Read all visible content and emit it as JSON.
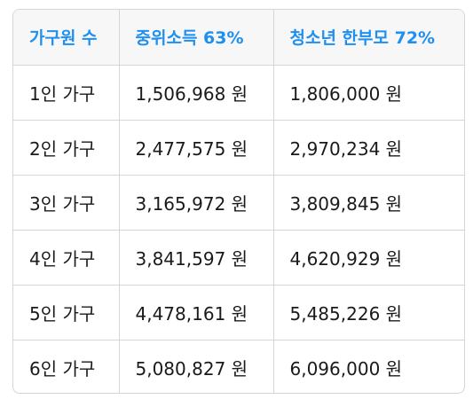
{
  "table": {
    "headers": [
      "가구원 수",
      "중위소득 63%",
      "청소년 한부모 72%"
    ],
    "rows": [
      [
        "1인 가구",
        "1,506,968 원",
        "1,806,000 원"
      ],
      [
        "2인 가구",
        "2,477,575 원",
        "2,970,234 원"
      ],
      [
        "3인 가구",
        "3,165,972 원",
        "3,809,845 원"
      ],
      [
        "4인 가구",
        "3,841,597 원",
        "4,620,929 원"
      ],
      [
        "5인 가구",
        "4,478,161 원",
        "5,485,226 원"
      ],
      [
        "6인 가구",
        "5,080,827 원",
        "6,096,000 원"
      ]
    ],
    "header_color": "#1f8ff0"
  }
}
